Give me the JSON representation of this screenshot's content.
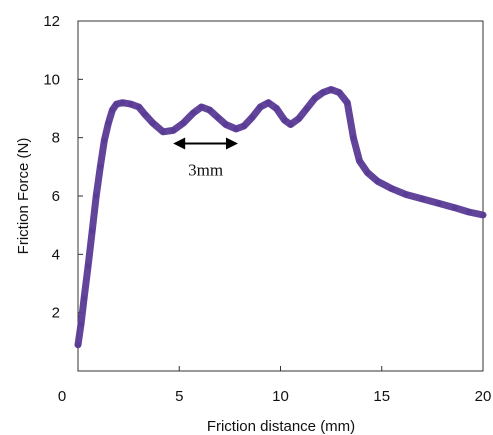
{
  "chart_data": {
    "type": "scatter",
    "title": "",
    "xlabel": "Friction distance (mm)",
    "ylabel": "Friction Force (N)",
    "xlim": [
      0,
      20
    ],
    "ylim": [
      0,
      12
    ],
    "xticks": [
      0,
      5,
      10,
      15,
      20
    ],
    "yticks": [
      2,
      4,
      6,
      8,
      10,
      12
    ],
    "grid": false,
    "legend": "none",
    "annotation": {
      "text": "3mm",
      "arrow_from_x": 4.7,
      "arrow_to_x": 7.9,
      "arrow_y": 7.8,
      "style": "double-headed arrow"
    },
    "series": [
      {
        "color": "#5a3b95",
        "points": [
          [
            0.0,
            0.9
          ],
          [
            0.15,
            1.6
          ],
          [
            0.3,
            2.5
          ],
          [
            0.5,
            3.6
          ],
          [
            0.7,
            4.8
          ],
          [
            0.9,
            6.0
          ],
          [
            1.1,
            7.0
          ],
          [
            1.3,
            7.9
          ],
          [
            1.5,
            8.5
          ],
          [
            1.7,
            8.95
          ],
          [
            1.9,
            9.15
          ],
          [
            2.2,
            9.2
          ],
          [
            2.6,
            9.15
          ],
          [
            3.0,
            9.05
          ],
          [
            3.3,
            8.8
          ],
          [
            3.7,
            8.5
          ],
          [
            4.2,
            8.2
          ],
          [
            4.7,
            8.25
          ],
          [
            5.2,
            8.5
          ],
          [
            5.7,
            8.85
          ],
          [
            6.1,
            9.05
          ],
          [
            6.5,
            8.95
          ],
          [
            6.9,
            8.7
          ],
          [
            7.3,
            8.45
          ],
          [
            7.8,
            8.3
          ],
          [
            8.2,
            8.4
          ],
          [
            8.6,
            8.7
          ],
          [
            9.0,
            9.05
          ],
          [
            9.4,
            9.2
          ],
          [
            9.8,
            9.0
          ],
          [
            10.2,
            8.6
          ],
          [
            10.5,
            8.45
          ],
          [
            10.9,
            8.65
          ],
          [
            11.3,
            9.0
          ],
          [
            11.7,
            9.35
          ],
          [
            12.1,
            9.55
          ],
          [
            12.5,
            9.65
          ],
          [
            12.9,
            9.55
          ],
          [
            13.3,
            9.2
          ],
          [
            13.6,
            8.0
          ],
          [
            13.9,
            7.2
          ],
          [
            14.3,
            6.8
          ],
          [
            14.8,
            6.5
          ],
          [
            15.5,
            6.25
          ],
          [
            16.2,
            6.05
          ],
          [
            17.0,
            5.9
          ],
          [
            17.8,
            5.75
          ],
          [
            18.6,
            5.6
          ],
          [
            19.3,
            5.45
          ],
          [
            20.0,
            5.35
          ]
        ]
      }
    ]
  }
}
